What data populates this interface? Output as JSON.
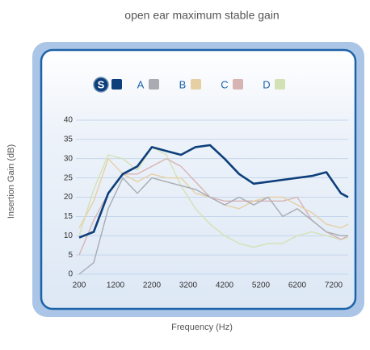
{
  "chart_data": {
    "type": "line",
    "title": "open ear maximum stable gain",
    "x_label": "Frequency (Hz)",
    "y_label": "Insertion Gain (dB)",
    "x": [
      200,
      600,
      1000,
      1400,
      1800,
      2200,
      2600,
      3000,
      3400,
      3800,
      4200,
      4600,
      5000,
      5400,
      5800,
      6200,
      6600,
      7000,
      7400,
      7600
    ],
    "series": [
      {
        "name": "S",
        "color": "#0d3f7a",
        "values": [
          9.5,
          11,
          21,
          26,
          28,
          33,
          32,
          31,
          33,
          33.5,
          30,
          26,
          23.5,
          24,
          24.5,
          25,
          25.5,
          26.5,
          21,
          20
        ]
      },
      {
        "name": "A",
        "color": "#a9abb2",
        "values": [
          0,
          3,
          17,
          25,
          21,
          25,
          24,
          23,
          22,
          20,
          18,
          20,
          18,
          20,
          15,
          17,
          14,
          11,
          10,
          10
        ]
      },
      {
        "name": "B",
        "color": "#e6cfa3",
        "values": [
          12,
          19,
          30,
          26,
          24,
          26,
          25,
          25,
          21,
          20,
          18,
          17,
          19,
          20,
          20,
          18,
          16,
          13,
          12,
          13
        ]
      },
      {
        "name": "C",
        "color": "#d8b3b3",
        "values": [
          5,
          14,
          21,
          26,
          26,
          28,
          30,
          28,
          24,
          20,
          19,
          19,
          19,
          19,
          19,
          20,
          14,
          11,
          9,
          10
        ]
      },
      {
        "name": "D",
        "color": "#d3e2b4",
        "values": [
          10,
          22,
          31,
          30,
          27,
          33,
          31,
          23,
          17,
          13,
          10,
          8,
          7,
          8,
          8,
          10,
          11,
          10,
          9,
          9.5
        ]
      }
    ],
    "xlim": [
      200,
      7600
    ],
    "xticks": [
      200,
      1200,
      2200,
      3200,
      4200,
      5200,
      6200,
      7200
    ],
    "ylim": [
      0,
      40
    ],
    "yticks": [
      0,
      5,
      10,
      15,
      20,
      25,
      30,
      35,
      40
    ],
    "grid": true
  }
}
